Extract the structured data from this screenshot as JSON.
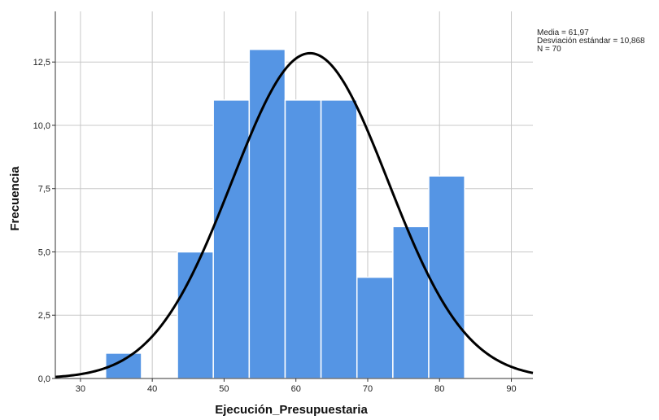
{
  "chart_data": {
    "type": "bar",
    "subtype": "histogram-with-normal-curve",
    "xlabel": "Ejecución_Presupuestaria",
    "ylabel": "Frecuencia",
    "xlim": [
      26.5,
      93.0
    ],
    "ylim": [
      0,
      14.5
    ],
    "x_ticks": [
      "30",
      "40",
      "50",
      "60",
      "70",
      "80",
      "90"
    ],
    "y_ticks": [
      "0,0",
      "2,5",
      "5,0",
      "7,5",
      "10,0",
      "12,5"
    ],
    "bins": [
      {
        "start": 33.5,
        "end": 38.5,
        "count": 1
      },
      {
        "start": 38.5,
        "end": 43.5,
        "count": 0
      },
      {
        "start": 43.5,
        "end": 48.5,
        "count": 5
      },
      {
        "start": 48.5,
        "end": 53.5,
        "count": 11
      },
      {
        "start": 53.5,
        "end": 58.5,
        "count": 13
      },
      {
        "start": 58.5,
        "end": 63.5,
        "count": 11
      },
      {
        "start": 63.5,
        "end": 68.5,
        "count": 11
      },
      {
        "start": 68.5,
        "end": 73.5,
        "count": 4
      },
      {
        "start": 73.5,
        "end": 78.5,
        "count": 6
      },
      {
        "start": 78.5,
        "end": 83.5,
        "count": 8
      }
    ],
    "normal_curve": {
      "mean": 61.97,
      "sd": 10.868,
      "n": 70,
      "bin_width": 5
    },
    "grid": true,
    "colors": {
      "bar": "#5595e4",
      "bar_edge": "#ffffff",
      "curve": "#000000",
      "grid": "#c8c8c8"
    }
  },
  "stats_box": {
    "mean_text": "Media = 61,97",
    "sd_text": "Desviación estándar = 10,868",
    "n_text": "N = 70"
  }
}
